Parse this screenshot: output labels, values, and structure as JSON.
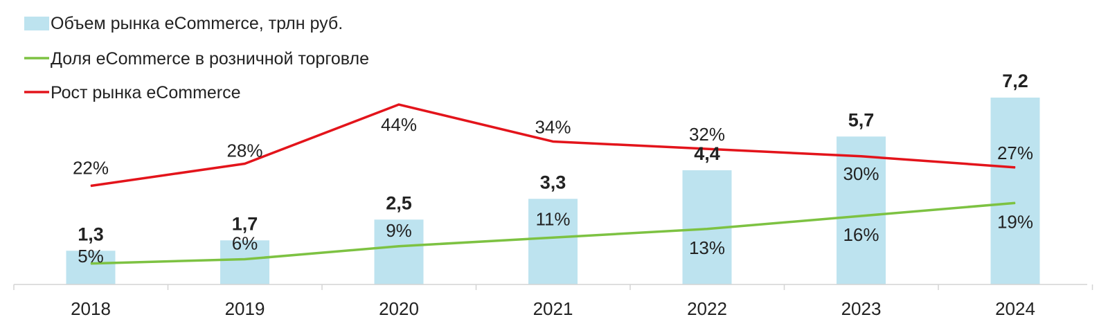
{
  "chart_data": {
    "type": "bar",
    "categories": [
      "2018",
      "2019",
      "2020",
      "2021",
      "2022",
      "2023",
      "2024"
    ],
    "series": [
      {
        "name": "Объем рынка eCommerce, трлн руб.",
        "kind": "bar",
        "color": "#bde3ef",
        "values": [
          1.3,
          1.7,
          2.5,
          3.3,
          4.4,
          5.7,
          7.2
        ],
        "labels": [
          "1,3",
          "1,7",
          "2,5",
          "3,3",
          "4,4",
          "5,7",
          "7,2"
        ]
      },
      {
        "name": "Доля eCommerce в розничной торговле",
        "kind": "line",
        "color": "#7dc242",
        "values": [
          5,
          6,
          9,
          11,
          13,
          16,
          19
        ],
        "labels": [
          "5%",
          "6%",
          "9%",
          "11%",
          "13%",
          "16%",
          "19%"
        ]
      },
      {
        "name": "Рост рынка eCommerce",
        "kind": "line",
        "color": "#e3141b",
        "values": [
          22,
          28,
          44,
          34,
          32,
          30,
          27
        ],
        "labels": [
          "22%",
          "28%",
          "44%",
          "34%",
          "32%",
          "30%",
          "27%"
        ]
      }
    ],
    "legend": "top-left",
    "grid": false,
    "title": "",
    "xlabel": "",
    "ylabel": ""
  }
}
